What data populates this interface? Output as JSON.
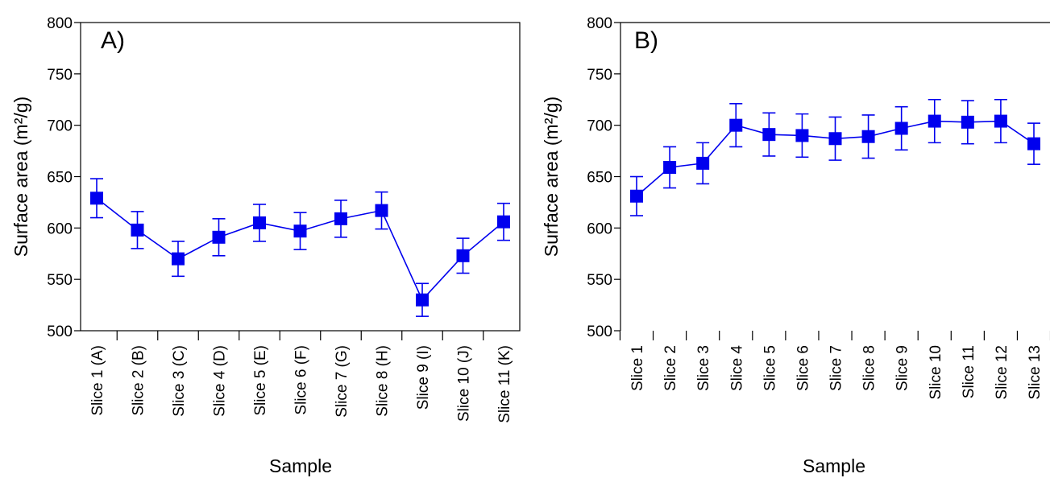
{
  "colors": {
    "series": "#0000ee",
    "axis": "#000000"
  },
  "chart_data": [
    {
      "type": "line",
      "panel_label": "A)",
      "xlabel": "Sample",
      "ylabel": "Surface area (m²/g)",
      "ylim": [
        500,
        800
      ],
      "yticks": [
        500,
        550,
        600,
        650,
        700,
        750,
        800
      ],
      "categories": [
        "Slice 1 (A)",
        "Slice 2 (B)",
        "Slice 3 (C)",
        "Slice 4 (D)",
        "Slice 5 (E)",
        "Slice 6 (F)",
        "Slice 7 (G)",
        "Slice 8 (H)",
        "Slice 9 (I)",
        "Slice 10 (J)",
        "Slice 11 (K)"
      ],
      "values": [
        629,
        598,
        570,
        591,
        605,
        597,
        609,
        617,
        530,
        573,
        606
      ],
      "errors": [
        19,
        18,
        17,
        18,
        18,
        18,
        18,
        18,
        16,
        17,
        18
      ],
      "grid": false,
      "legend": "none"
    },
    {
      "type": "line",
      "panel_label": "B)",
      "xlabel": "Sample",
      "ylabel": "Surface area (m²/g)",
      "ylim": [
        500,
        800
      ],
      "yticks": [
        500,
        550,
        600,
        650,
        700,
        750,
        800
      ],
      "categories": [
        "Slice 1",
        "Slice 2",
        "Slice 3",
        "Slice 4",
        "Slice 5",
        "Slice 6",
        "Slice 7",
        "Slice 8",
        "Slice 9",
        "Slice 10",
        "Slice 11",
        "Slice 12",
        "Slice 13"
      ],
      "values": [
        631,
        659,
        663,
        700,
        691,
        690,
        687,
        689,
        697,
        704,
        703,
        704,
        682
      ],
      "errors": [
        19,
        20,
        20,
        21,
        21,
        21,
        21,
        21,
        21,
        21,
        21,
        21,
        20
      ],
      "grid": false,
      "legend": "none"
    }
  ]
}
